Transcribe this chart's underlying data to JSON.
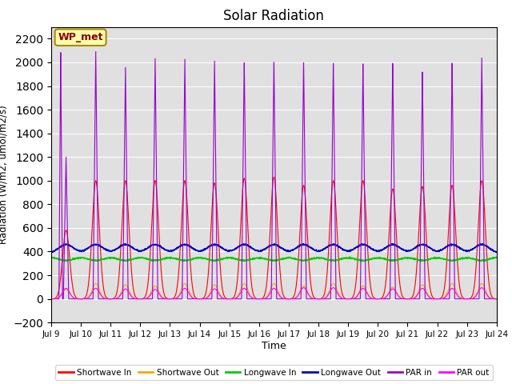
{
  "title": "Solar Radiation",
  "xlabel": "Time",
  "ylabel": "Radiation (W/m2, umol/m2/s)",
  "ylim": [
    -200,
    2300
  ],
  "yticks": [
    -200,
    0,
    200,
    400,
    600,
    800,
    1000,
    1200,
    1400,
    1600,
    1800,
    2000,
    2200
  ],
  "annotation": "WP_met",
  "background_color": "#e0e0e0",
  "series_colors": {
    "shortwave_in": "#ff0000",
    "shortwave_out": "#ffa500",
    "longwave_in": "#00cc00",
    "longwave_out": "#0000cc",
    "par_in": "#9900cc",
    "par_out": "#ff00ff"
  },
  "legend_labels": [
    "Shortwave In",
    "Shortwave Out",
    "Longwave In",
    "Longwave Out",
    "PAR in",
    "PAR out"
  ],
  "n_days": 15,
  "start_day": 9,
  "shortwave_in_peaks": [
    580,
    1000,
    1000,
    1000,
    1000,
    980,
    1020,
    1030,
    960,
    1000,
    1000,
    930,
    950,
    960,
    1000
  ],
  "shortwave_out_peaks": [
    80,
    130,
    120,
    110,
    130,
    120,
    130,
    130,
    110,
    130,
    110,
    100,
    120,
    130,
    130
  ],
  "longwave_in_base": 355,
  "longwave_out_base": 385,
  "par_in_peaks": [
    1200,
    2100,
    1970,
    2050,
    2050,
    2040,
    2030,
    2040,
    2030,
    2020,
    2010,
    2010,
    1930,
    2000,
    2040
  ],
  "par_in_secondary": [
    2100,
    0,
    0,
    0,
    0,
    0,
    0,
    0,
    0,
    0,
    0,
    0,
    0,
    0,
    0
  ],
  "par_out_peaks": [
    90,
    90,
    85,
    80,
    90,
    85,
    90,
    90,
    95,
    95,
    90,
    85,
    90,
    90,
    95
  ]
}
